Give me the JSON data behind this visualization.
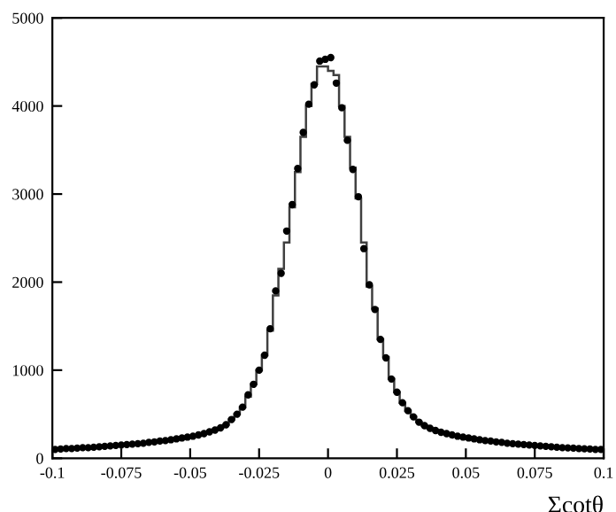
{
  "chart_data": {
    "type": "histogram",
    "xlabel": "Σcotθ",
    "bins": [
      -0.1,
      -0.098,
      -0.096,
      -0.094,
      -0.092,
      -0.09,
      -0.088,
      -0.086,
      -0.084,
      -0.082,
      -0.08,
      -0.078,
      -0.076,
      -0.074,
      -0.072,
      -0.07,
      -0.068,
      -0.066,
      -0.064,
      -0.062,
      -0.06,
      -0.058,
      -0.056,
      -0.054,
      -0.052,
      -0.05,
      -0.048,
      -0.046,
      -0.044,
      -0.042,
      -0.04,
      -0.038,
      -0.036,
      -0.034,
      -0.032,
      -0.03,
      -0.028,
      -0.026,
      -0.024,
      -0.022,
      -0.02,
      -0.018,
      -0.016,
      -0.014,
      -0.012,
      -0.01,
      -0.008,
      -0.006,
      -0.004,
      -0.002,
      0,
      0.002,
      0.004,
      0.006,
      0.008,
      0.01,
      0.012,
      0.014,
      0.016,
      0.018,
      0.02,
      0.022,
      0.024,
      0.026,
      0.028,
      0.03,
      0.032,
      0.034,
      0.036,
      0.038,
      0.04,
      0.042,
      0.044,
      0.046,
      0.048,
      0.05,
      0.052,
      0.054,
      0.056,
      0.058,
      0.06,
      0.062,
      0.064,
      0.066,
      0.068,
      0.07,
      0.072,
      0.074,
      0.076,
      0.078,
      0.08,
      0.082,
      0.084,
      0.086,
      0.088,
      0.09,
      0.092,
      0.094,
      0.096,
      0.098,
      0.1
    ],
    "values": [
      100,
      105,
      110,
      110,
      115,
      120,
      120,
      125,
      130,
      135,
      140,
      145,
      150,
      155,
      160,
      165,
      170,
      180,
      185,
      195,
      200,
      210,
      220,
      230,
      240,
      250,
      265,
      280,
      300,
      320,
      345,
      380,
      440,
      500,
      580,
      700,
      840,
      1000,
      1170,
      1450,
      1850,
      2150,
      2450,
      2850,
      3250,
      3650,
      4000,
      4250,
      4450,
      4450,
      4400,
      4350,
      4000,
      3650,
      3300,
      2950,
      2450,
      1950,
      1700,
      1350,
      1150,
      900,
      750,
      630,
      540,
      470,
      410,
      370,
      340,
      315,
      295,
      280,
      265,
      250,
      240,
      230,
      220,
      210,
      200,
      195,
      185,
      180,
      170,
      165,
      160,
      155,
      150,
      145,
      140,
      135,
      130,
      125,
      120,
      118,
      115,
      110,
      108,
      105,
      100,
      100
    ],
    "color": "#404040",
    "series": [
      {
        "type": "scatter",
        "color": "#000000",
        "marker": "circle",
        "x": [
          -0.099,
          -0.097,
          -0.095,
          -0.093,
          -0.091,
          -0.089,
          -0.087,
          -0.085,
          -0.083,
          -0.081,
          -0.079,
          -0.077,
          -0.075,
          -0.073,
          -0.071,
          -0.069,
          -0.067,
          -0.065,
          -0.063,
          -0.061,
          -0.059,
          -0.057,
          -0.055,
          -0.053,
          -0.051,
          -0.049,
          -0.047,
          -0.045,
          -0.043,
          -0.041,
          -0.039,
          -0.037,
          -0.035,
          -0.033,
          -0.031,
          -0.029,
          -0.027,
          -0.025,
          -0.023,
          -0.021,
          -0.019,
          -0.017,
          -0.015,
          -0.013,
          -0.011,
          -0.009,
          -0.007,
          -0.005,
          -0.003,
          -0.001,
          0.001,
          0.003,
          0.005,
          0.007,
          0.009,
          0.011,
          0.013,
          0.015,
          0.017,
          0.019,
          0.021,
          0.023,
          0.025,
          0.027,
          0.029,
          0.031,
          0.033,
          0.035,
          0.037,
          0.039,
          0.041,
          0.043,
          0.045,
          0.047,
          0.049,
          0.051,
          0.053,
          0.055,
          0.057,
          0.059,
          0.061,
          0.063,
          0.065,
          0.067,
          0.069,
          0.071,
          0.073,
          0.075,
          0.077,
          0.079,
          0.081,
          0.083,
          0.085,
          0.087,
          0.089,
          0.091,
          0.093,
          0.095,
          0.097,
          0.099
        ],
        "values": [
          100,
          105,
          110,
          110,
          115,
          120,
          120,
          125,
          130,
          135,
          140,
          145,
          150,
          155,
          160,
          165,
          170,
          180,
          185,
          195,
          200,
          210,
          220,
          230,
          240,
          250,
          265,
          280,
          300,
          320,
          345,
          380,
          440,
          500,
          580,
          720,
          840,
          1000,
          1170,
          1470,
          1900,
          2100,
          2580,
          2880,
          3290,
          3700,
          4020,
          4240,
          4510,
          4530,
          4550,
          4260,
          3980,
          3610,
          3280,
          2970,
          2380,
          1970,
          1690,
          1350,
          1140,
          900,
          750,
          630,
          540,
          470,
          410,
          370,
          340,
          315,
          295,
          280,
          265,
          250,
          240,
          230,
          220,
          210,
          200,
          195,
          185,
          180,
          170,
          165,
          160,
          155,
          150,
          145,
          140,
          135,
          130,
          125,
          120,
          118,
          115,
          110,
          108,
          105,
          100,
          100
        ]
      }
    ],
    "xlim": [
      -0.1,
      0.1
    ],
    "xticks": [
      {
        "value": -0.1,
        "label": "-0.1"
      },
      {
        "value": -0.075,
        "label": "-0.075"
      },
      {
        "value": -0.05,
        "label": "-0.05"
      },
      {
        "value": -0.025,
        "label": "-0.025"
      },
      0,
      0.025,
      0.05,
      0.075,
      0.1
    ],
    "ylim": [
      0,
      5000
    ],
    "yticks": [
      0,
      1000,
      2000,
      3000,
      4000,
      5000
    ],
    "grid": false
  }
}
